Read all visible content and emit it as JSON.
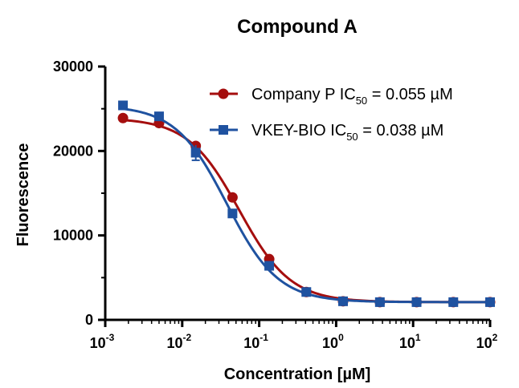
{
  "chart_data": {
    "type": "line",
    "title": "Compound A",
    "xlabel": "Concentration [µM]",
    "ylabel": "Fluorescence",
    "xscale": "log",
    "xlim": [
      0.001,
      100
    ],
    "ylim": [
      0,
      30000
    ],
    "yticks": [
      "0",
      "10000",
      "20000",
      "30000"
    ],
    "xticks": [
      {
        "base": "10",
        "exp": "-3"
      },
      {
        "base": "10",
        "exp": "-2"
      },
      {
        "base": "10",
        "exp": "-1"
      },
      {
        "base": "10",
        "exp": "0"
      },
      {
        "base": "10",
        "exp": "1"
      },
      {
        "base": "10",
        "exp": "2"
      }
    ],
    "legend_position": "top-right",
    "x": [
      0.0017,
      0.005,
      0.015,
      0.045,
      0.135,
      0.41,
      1.23,
      3.7,
      11.1,
      33.3,
      100
    ],
    "series": [
      {
        "name": "Company P IC50 = 0.055 µM",
        "legend_prefix": "Company P IC",
        "legend_sub": "50",
        "legend_suffix": " = 0.055 µM",
        "color": "#a50e0e",
        "marker": "circle",
        "ic50": 0.055,
        "values": [
          23900,
          23300,
          20600,
          14500,
          7200,
          3300,
          2200,
          2100,
          2100,
          2100,
          2100
        ],
        "errors": [
          0,
          0,
          0,
          0,
          0,
          0,
          0,
          0,
          0,
          0,
          0
        ]
      },
      {
        "name": "VKEY-BIO IC50 = 0.038 µM",
        "legend_prefix": "VKEY-BIO IC",
        "legend_sub": "50",
        "legend_suffix": " = 0.038 µM",
        "color": "#1f52a0",
        "marker": "square",
        "ic50": 0.038,
        "values": [
          25400,
          24100,
          19800,
          12600,
          6400,
          3300,
          2200,
          2100,
          2100,
          2100,
          2100
        ],
        "errors": [
          0,
          0,
          900,
          0,
          0,
          0,
          0,
          0,
          0,
          0,
          0
        ]
      }
    ]
  }
}
